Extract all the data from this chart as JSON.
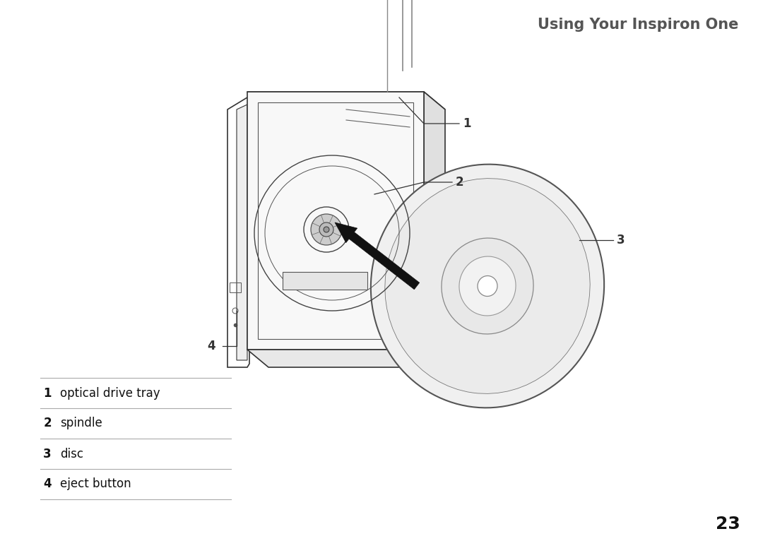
{
  "title": "Using Your Inspiron One",
  "title_color": "#555555",
  "title_fontsize": 15,
  "page_number": "23",
  "background_color": "#ffffff",
  "legend_items": [
    {
      "num": "1",
      "label": "optical drive tray"
    },
    {
      "num": "2",
      "label": "spindle"
    },
    {
      "num": "3",
      "label": "disc"
    },
    {
      "num": "4",
      "label": "eject button"
    }
  ],
  "num_fontsize": 12,
  "label_fontsize": 12
}
